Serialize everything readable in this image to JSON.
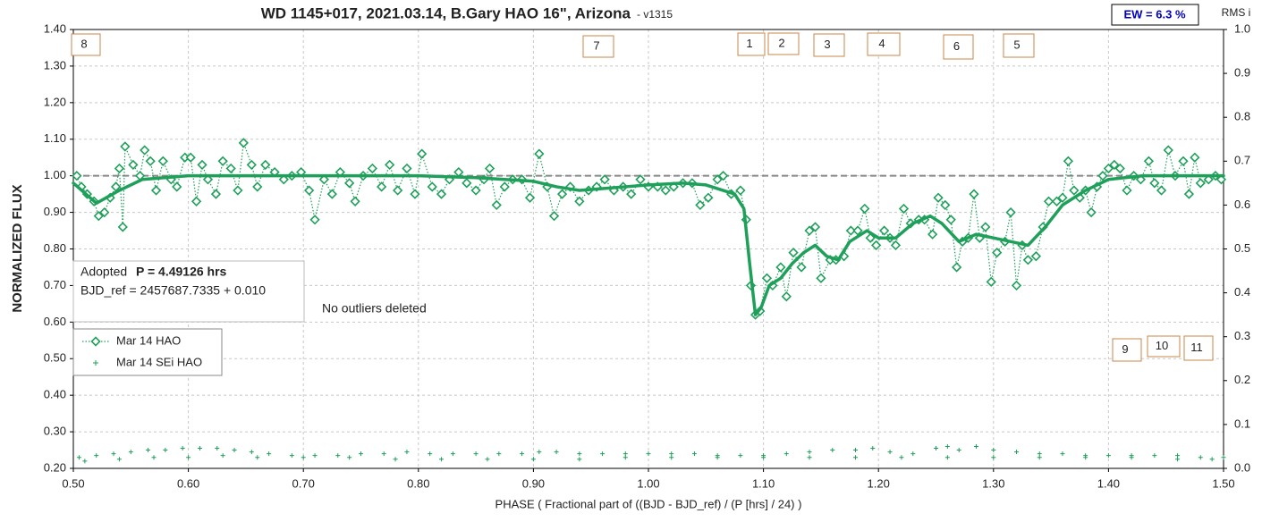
{
  "chart_data": {
    "type": "scatter",
    "title": "WD 1145+017, 2021.03.14, B.Gary HAO 16\", Arizona",
    "subtitle": "- v1315",
    "ew_label": "EW = 6.3 %",
    "y2_label": "RMS i",
    "x_label": "PHASE ( Fractional part of ((BJD - BJD_ref) / (P [hrs] / 24) )",
    "y_label": "NORMALIZED FLUX",
    "info_prefix": "Adopted",
    "info_period": "P = 4.49126 hrs",
    "info_ref": "BJD_ref = 2457687.7335 + 0.010",
    "note": "No outliers deleted",
    "annotations": [
      "8",
      "7",
      "1",
      "2",
      "3",
      "4",
      "6",
      "5",
      "9",
      "10",
      "11"
    ],
    "reference_line": 1,
    "xlim": [
      0.5,
      1.5
    ],
    "xticks": [
      {
        "value": 0.5,
        "label": "0.50"
      },
      {
        "value": 0.6,
        "label": "0.60"
      },
      {
        "value": 0.7,
        "label": "0.70"
      },
      {
        "value": 0.8,
        "label": "0.80"
      },
      {
        "value": 0.9,
        "label": "0.90"
      },
      {
        "value": 1.0,
        "label": "1.00"
      },
      {
        "value": 1.1,
        "label": "1.10"
      },
      {
        "value": 1.2,
        "label": "1.20"
      },
      {
        "value": 1.3,
        "label": "1.30"
      },
      {
        "value": 1.4,
        "label": "1.40"
      },
      {
        "value": 1.5,
        "label": "1.50"
      }
    ],
    "ylim": [
      0.2,
      1.4
    ],
    "yticks": [
      {
        "value": 0.2,
        "label": "0.20"
      },
      {
        "value": 0.3,
        "label": "0.30"
      },
      {
        "value": 0.4,
        "label": "0.40"
      },
      {
        "value": 0.5,
        "label": "0.50"
      },
      {
        "value": 0.6,
        "label": "0.60"
      },
      {
        "value": 0.7,
        "label": "0.70"
      },
      {
        "value": 0.8,
        "label": "0.80"
      },
      {
        "value": 0.9,
        "label": "0.90"
      },
      {
        "value": 1.0,
        "label": "1.00"
      },
      {
        "value": 1.1,
        "label": "1.10"
      },
      {
        "value": 1.2,
        "label": "1.20"
      },
      {
        "value": 1.3,
        "label": "1.30"
      },
      {
        "value": 1.4,
        "label": "1.40"
      }
    ],
    "y2lim": [
      0,
      1
    ],
    "y2ticks": [
      {
        "value": 0,
        "label": "0.0"
      },
      0.1,
      0.2,
      0.3,
      0.4,
      0.5,
      0.6,
      0.7,
      0.8,
      0.9,
      {
        "value": 1,
        "label": "1.0"
      }
    ],
    "grid": true,
    "series": [
      {
        "name": "Mar 14 HAO",
        "color": "#1fa05a",
        "marker": "diamond",
        "x": [
          0.503,
          0.507,
          0.512,
          0.518,
          0.522,
          0.527,
          0.532,
          0.537,
          0.54,
          0.543,
          0.545,
          0.552,
          0.558,
          0.562,
          0.567,
          0.572,
          0.578,
          0.585,
          0.59,
          0.597,
          0.602,
          0.607,
          0.612,
          0.617,
          0.624,
          0.63,
          0.637,
          0.643,
          0.648,
          0.655,
          0.66,
          0.667,
          0.675,
          0.683,
          0.69,
          0.698,
          0.705,
          0.71,
          0.718,
          0.725,
          0.732,
          0.74,
          0.745,
          0.752,
          0.76,
          0.768,
          0.775,
          0.782,
          0.79,
          0.797,
          0.803,
          0.812,
          0.82,
          0.827,
          0.835,
          0.842,
          0.85,
          0.857,
          0.862,
          0.868,
          0.875,
          0.882,
          0.89,
          0.897,
          0.905,
          0.912,
          0.918,
          0.925,
          0.932,
          0.94,
          0.948,
          0.955,
          0.962,
          0.97,
          0.978,
          0.985,
          0.993,
          1.0,
          1.008,
          1.015,
          1.022,
          1.03,
          1.038,
          1.045,
          1.052,
          1.06,
          1.065,
          1.072,
          1.08,
          1.085,
          1.089,
          1.093,
          1.097,
          1.103,
          1.108,
          1.115,
          1.12,
          1.126,
          1.133,
          1.14,
          1.145,
          1.15,
          1.158,
          1.163,
          1.17,
          1.176,
          1.182,
          1.188,
          1.193,
          1.198,
          1.205,
          1.21,
          1.215,
          1.222,
          1.228,
          1.235,
          1.24,
          1.247,
          1.252,
          1.258,
          1.263,
          1.268,
          1.273,
          1.278,
          1.283,
          1.288,
          1.293,
          1.298,
          1.303,
          1.31,
          1.315,
          1.32,
          1.325,
          1.33,
          1.337,
          1.343,
          1.348,
          1.355,
          1.36,
          1.365,
          1.37,
          1.375,
          1.38,
          1.385,
          1.39,
          1.395,
          1.4,
          1.405,
          1.41,
          1.416,
          1.422,
          1.428,
          1.435,
          1.44,
          1.446,
          1.452,
          1.458,
          1.465,
          1.47,
          1.475,
          1.48,
          1.487,
          1.493,
          1.498
        ],
        "values": [
          1.0,
          0.97,
          0.95,
          0.93,
          0.89,
          0.9,
          0.94,
          0.97,
          1.02,
          0.86,
          1.08,
          1.03,
          1.0,
          1.07,
          1.04,
          0.96,
          1.04,
          0.99,
          0.97,
          1.05,
          1.05,
          0.93,
          1.03,
          0.99,
          0.95,
          1.04,
          1.02,
          0.96,
          1.09,
          1.03,
          0.97,
          1.03,
          1.01,
          0.99,
          1.0,
          1.01,
          0.96,
          0.88,
          0.99,
          0.95,
          1.01,
          0.98,
          0.93,
          1.0,
          1.02,
          0.97,
          1.03,
          0.96,
          1.02,
          0.95,
          1.06,
          0.97,
          0.95,
          0.99,
          1.01,
          0.98,
          0.96,
          0.99,
          1.02,
          0.92,
          0.97,
          0.99,
          0.99,
          0.94,
          1.06,
          0.97,
          0.89,
          0.95,
          0.97,
          0.93,
          0.96,
          0.97,
          0.99,
          0.96,
          0.97,
          0.95,
          0.99,
          0.97,
          0.97,
          0.96,
          0.97,
          0.98,
          0.98,
          0.92,
          0.94,
          0.99,
          1.0,
          0.95,
          0.96,
          0.88,
          0.7,
          0.62,
          0.63,
          0.72,
          0.7,
          0.75,
          0.67,
          0.79,
          0.75,
          0.85,
          0.86,
          0.72,
          0.77,
          0.77,
          0.78,
          0.85,
          0.85,
          0.91,
          0.83,
          0.81,
          0.85,
          0.83,
          0.81,
          0.91,
          0.87,
          0.88,
          0.88,
          0.84,
          0.94,
          0.92,
          0.88,
          0.75,
          0.82,
          0.83,
          0.95,
          0.83,
          0.86,
          0.71,
          0.79,
          0.82,
          0.9,
          0.7,
          0.81,
          0.77,
          0.78,
          0.86,
          0.93,
          0.93,
          0.94,
          1.04,
          0.96,
          0.94,
          0.96,
          0.9,
          0.97,
          1.0,
          1.02,
          1.03,
          1.02,
          0.96,
          1.0,
          0.99,
          1.04,
          0.98,
          0.96,
          1.07,
          1.0,
          1.04,
          0.95,
          1.05,
          0.98,
          0.99,
          1.0,
          0.99
        ]
      },
      {
        "name": "Mar 14 SEi HAO",
        "color": "#1fa05a",
        "marker": "plus",
        "x": [
          0.505,
          0.52,
          0.535,
          0.55,
          0.565,
          0.58,
          0.595,
          0.61,
          0.625,
          0.64,
          0.655,
          0.67,
          0.69,
          0.71,
          0.73,
          0.75,
          0.77,
          0.79,
          0.81,
          0.83,
          0.85,
          0.87,
          0.89,
          0.905,
          0.92,
          0.94,
          0.96,
          0.98,
          1.0,
          1.02,
          1.04,
          1.06,
          1.08,
          1.1,
          1.12,
          1.14,
          1.16,
          1.18,
          1.195,
          1.21,
          1.23,
          1.25,
          1.26,
          1.27,
          1.285,
          1.3,
          1.32,
          1.34,
          1.36,
          1.38,
          1.4,
          1.42,
          1.44,
          1.46,
          1.48,
          1.5,
          0.51,
          0.54,
          0.57,
          0.6,
          0.63,
          0.66,
          0.7,
          0.74,
          0.78,
          0.82,
          0.86,
          0.9,
          0.94,
          0.98,
          1.02,
          1.06,
          1.1,
          1.14,
          1.18,
          1.22,
          1.26,
          1.3,
          1.34,
          1.38,
          1.42,
          1.46,
          1.49
        ],
        "values": [
          0.23,
          0.235,
          0.24,
          0.245,
          0.25,
          0.25,
          0.255,
          0.255,
          0.255,
          0.25,
          0.245,
          0.24,
          0.235,
          0.235,
          0.235,
          0.24,
          0.24,
          0.245,
          0.24,
          0.24,
          0.24,
          0.24,
          0.24,
          0.245,
          0.245,
          0.24,
          0.24,
          0.24,
          0.24,
          0.24,
          0.24,
          0.235,
          0.235,
          0.235,
          0.24,
          0.245,
          0.25,
          0.25,
          0.255,
          0.245,
          0.24,
          0.255,
          0.26,
          0.25,
          0.26,
          0.25,
          0.245,
          0.24,
          0.24,
          0.235,
          0.235,
          0.235,
          0.235,
          0.235,
          0.23,
          0.23,
          0.22,
          0.225,
          0.23,
          0.23,
          0.235,
          0.23,
          0.23,
          0.23,
          0.225,
          0.225,
          0.225,
          0.225,
          0.225,
          0.23,
          0.23,
          0.23,
          0.23,
          0.23,
          0.23,
          0.23,
          0.23,
          0.23,
          0.23,
          0.23,
          0.23,
          0.225,
          0.225
        ]
      },
      {
        "color": "#1fa05a",
        "marker": "line",
        "x": [
          0.5,
          0.52,
          0.54,
          0.56,
          0.6,
          0.7,
          0.8,
          0.85,
          0.9,
          0.92,
          0.94,
          0.96,
          0.98,
          1.0,
          1.03,
          1.05,
          1.065,
          1.075,
          1.083,
          1.088,
          1.093,
          1.098,
          1.105,
          1.115,
          1.125,
          1.135,
          1.145,
          1.155,
          1.165,
          1.175,
          1.19,
          1.2,
          1.215,
          1.23,
          1.245,
          1.255,
          1.27,
          1.285,
          1.3,
          1.315,
          1.33,
          1.345,
          1.36,
          1.38,
          1.4,
          1.43,
          1.5
        ],
        "values": [
          0.98,
          0.925,
          0.96,
          0.99,
          1.0,
          1.0,
          1.0,
          0.995,
          0.985,
          0.97,
          0.96,
          0.965,
          0.97,
          0.975,
          0.98,
          0.975,
          0.96,
          0.95,
          0.91,
          0.76,
          0.62,
          0.64,
          0.7,
          0.72,
          0.76,
          0.79,
          0.81,
          0.78,
          0.77,
          0.82,
          0.85,
          0.83,
          0.83,
          0.87,
          0.89,
          0.87,
          0.82,
          0.84,
          0.83,
          0.82,
          0.81,
          0.86,
          0.92,
          0.96,
          0.99,
          1.0,
          1.0
        ]
      }
    ]
  }
}
